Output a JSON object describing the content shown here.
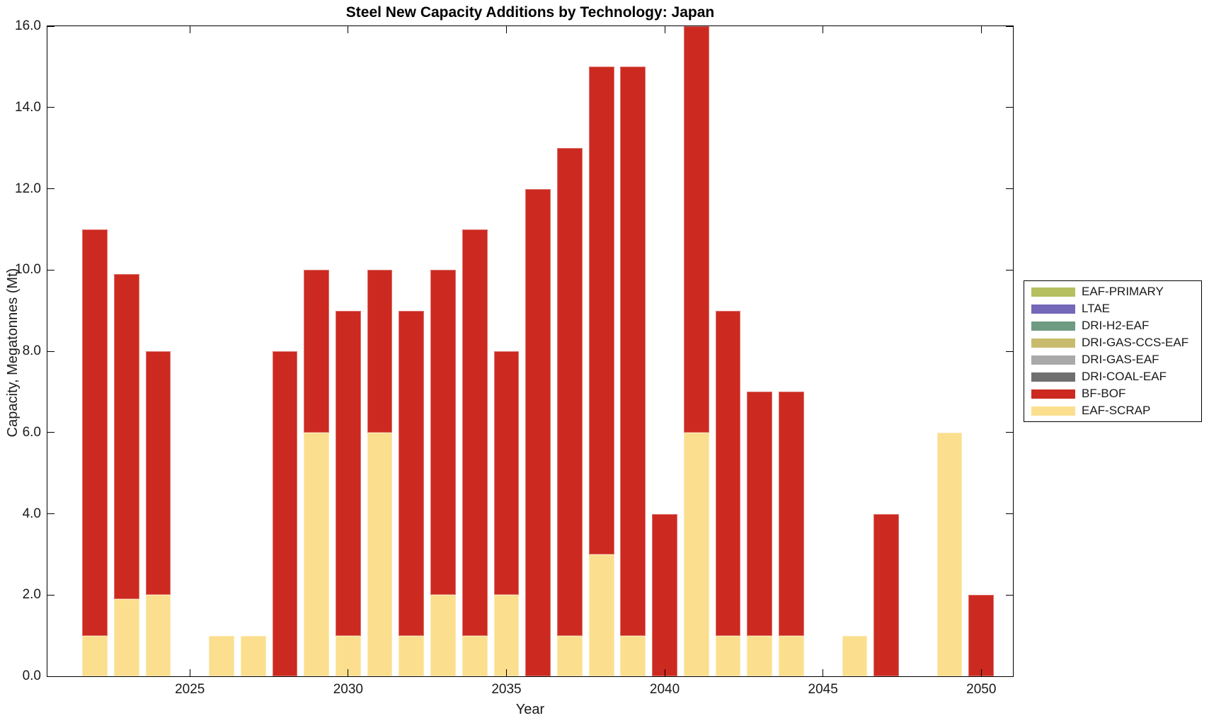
{
  "title": "Steel New Capacity Additions by Technology: Japan",
  "axes": {
    "xlabel": "Year",
    "ylabel": "Capacity, Megatonnes (Mt)",
    "x_tick_labels": [
      "2025",
      "2030",
      "2035",
      "2040",
      "2045",
      "2050"
    ],
    "y_tick_labels": [
      "0.0",
      "2.0",
      "4.0",
      "6.0",
      "8.0",
      "10.0",
      "12.0",
      "14.0",
      "16.0"
    ]
  },
  "colors": {
    "axis_line": "#000000",
    "tick_text": "#1a1a1a",
    "background": "#ffffff"
  },
  "chart_data": {
    "type": "bar",
    "stacked": true,
    "title": "Steel New Capacity Additions by Technology: Japan",
    "xlabel": "Year",
    "ylabel": "Capacity, Megatonnes (Mt)",
    "xlim": [
      2020.5,
      2051.0
    ],
    "ylim": [
      0,
      16
    ],
    "xticks": [
      2025,
      2030,
      2035,
      2040,
      2045,
      2050
    ],
    "yticks": [
      0,
      2,
      4,
      6,
      8,
      10,
      12,
      14,
      16
    ],
    "grid": false,
    "legend_position": "outside-right",
    "bar_width_years": 0.8,
    "categories": [
      2022,
      2023,
      2024,
      2025,
      2026,
      2027,
      2028,
      2029,
      2030,
      2031,
      2032,
      2033,
      2034,
      2035,
      2036,
      2037,
      2038,
      2039,
      2040,
      2041,
      2042,
      2043,
      2044,
      2045,
      2046,
      2047,
      2048,
      2049,
      2050
    ],
    "series": [
      {
        "name": "EAF-SCRAP",
        "color": "#fbdf8e",
        "values": [
          1,
          1.9,
          2,
          0,
          1,
          1,
          0,
          6,
          1,
          6,
          1,
          2,
          1,
          2,
          0,
          1,
          3,
          1,
          0,
          6,
          1,
          1,
          1,
          0,
          1,
          0,
          0,
          6,
          0
        ]
      },
      {
        "name": "BF-BOF",
        "color": "#cc2a20",
        "values": [
          10,
          8,
          6,
          0,
          0,
          0,
          8,
          4,
          8,
          4,
          8,
          8,
          10,
          6,
          12,
          12,
          12,
          14,
          4,
          10,
          8,
          6,
          6,
          0,
          0,
          4,
          0,
          0,
          2
        ]
      },
      {
        "name": "DRI-COAL-EAF",
        "color": "#6f6f6f",
        "values": [
          0,
          0,
          0,
          0,
          0,
          0,
          0,
          0,
          0,
          0,
          0,
          0,
          0,
          0,
          0,
          0,
          0,
          0,
          0,
          0,
          0,
          0,
          0,
          0,
          0,
          0,
          0,
          0,
          0
        ]
      },
      {
        "name": "DRI-GAS-EAF",
        "color": "#a9a9a9",
        "values": [
          0,
          0,
          0,
          0,
          0,
          0,
          0,
          0,
          0,
          0,
          0,
          0,
          0,
          0,
          0,
          0,
          0,
          0,
          0,
          0,
          0,
          0,
          0,
          0,
          0,
          0,
          0,
          0,
          0
        ]
      },
      {
        "name": "DRI-GAS-CCS-EAF",
        "color": "#c9bb6d",
        "values": [
          0,
          0,
          0,
          0,
          0,
          0,
          0,
          0,
          0,
          0,
          0,
          0,
          0,
          0,
          0,
          0,
          0,
          0,
          0,
          0,
          0,
          0,
          0,
          0,
          0,
          0,
          0,
          0,
          0
        ]
      },
      {
        "name": "DRI-H2-EAF",
        "color": "#6e9b81",
        "values": [
          0,
          0,
          0,
          0,
          0,
          0,
          0,
          0,
          0,
          0,
          0,
          0,
          0,
          0,
          0,
          0,
          0,
          0,
          0,
          0,
          0,
          0,
          0,
          0,
          0,
          0,
          0,
          0,
          0
        ]
      },
      {
        "name": "LTAE",
        "color": "#7468b8",
        "values": [
          0,
          0,
          0,
          0,
          0,
          0,
          0,
          0,
          0,
          0,
          0,
          0,
          0,
          0,
          0,
          0,
          0,
          0,
          0,
          0,
          0,
          0,
          0,
          0,
          0,
          0,
          0,
          0,
          0
        ]
      },
      {
        "name": "EAF-PRIMARY",
        "color": "#b6bf5e",
        "values": [
          0,
          0,
          0,
          0,
          0,
          0,
          0,
          0,
          0,
          0,
          0,
          0,
          0,
          0,
          0,
          0,
          0,
          0,
          0,
          0,
          0,
          0,
          0,
          0,
          0,
          0,
          0,
          0,
          0
        ]
      }
    ]
  },
  "legend": {
    "items": [
      {
        "label": "EAF-PRIMARY",
        "color": "#b6bf5e"
      },
      {
        "label": "LTAE",
        "color": "#7468b8"
      },
      {
        "label": "DRI-H2-EAF",
        "color": "#6e9b81"
      },
      {
        "label": "DRI-GAS-CCS-EAF",
        "color": "#c9bb6d"
      },
      {
        "label": "DRI-GAS-EAF",
        "color": "#a9a9a9"
      },
      {
        "label": "DRI-COAL-EAF",
        "color": "#6f6f6f"
      },
      {
        "label": "BF-BOF",
        "color": "#cc2a20"
      },
      {
        "label": "EAF-SCRAP",
        "color": "#fbdf8e"
      }
    ]
  }
}
